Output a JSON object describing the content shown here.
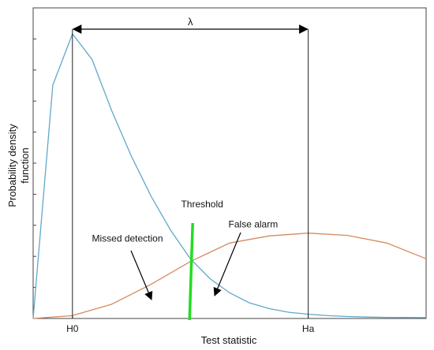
{
  "chart_data": {
    "type": "line",
    "xlabel": "Test statistic",
    "ylabel": [
      "Probability density",
      "function"
    ],
    "x_ticks": [
      {
        "label": "H0",
        "x": 1
      },
      {
        "label": "Ha",
        "x": 7
      }
    ],
    "x_range": [
      0,
      10
    ],
    "y_range": [
      0,
      1
    ],
    "series": [
      {
        "name": "",
        "color": "#5fa9c9",
        "points": [
          [
            0,
            0.0
          ],
          [
            0.5,
            0.82
          ],
          [
            1,
            1.0
          ],
          [
            1.5,
            0.91
          ],
          [
            2,
            0.73
          ],
          [
            2.5,
            0.57
          ],
          [
            3,
            0.43
          ],
          [
            3.5,
            0.31
          ],
          [
            4,
            0.21
          ],
          [
            4.5,
            0.14
          ],
          [
            5,
            0.09
          ],
          [
            5.5,
            0.055
          ],
          [
            6,
            0.035
          ],
          [
            6.5,
            0.022
          ],
          [
            7,
            0.015
          ],
          [
            7.5,
            0.01
          ],
          [
            8,
            0.007
          ],
          [
            8.5,
            0.005
          ],
          [
            9,
            0.004
          ],
          [
            10,
            0.003
          ]
        ]
      },
      {
        "name": "",
        "color": "#d58a5e",
        "points": [
          [
            0,
            0.0
          ],
          [
            1,
            0.01
          ],
          [
            2,
            0.05
          ],
          [
            3,
            0.12
          ],
          [
            4,
            0.2
          ],
          [
            5,
            0.265
          ],
          [
            6,
            0.29
          ],
          [
            7,
            0.3
          ],
          [
            8,
            0.292
          ],
          [
            9,
            0.265
          ],
          [
            10,
            0.21
          ]
        ]
      }
    ],
    "threshold": {
      "x": 4,
      "color": "#22dd22"
    },
    "vlines": [
      1,
      7
    ],
    "lambda_label": "λ",
    "annotations": [
      {
        "text": "Threshold",
        "x": 4.3,
        "y": 0.39
      },
      {
        "text": "Missed detection",
        "x": 2.4,
        "y": 0.27
      },
      {
        "text": "False alarm",
        "x": 5.6,
        "y": 0.32
      }
    ]
  }
}
